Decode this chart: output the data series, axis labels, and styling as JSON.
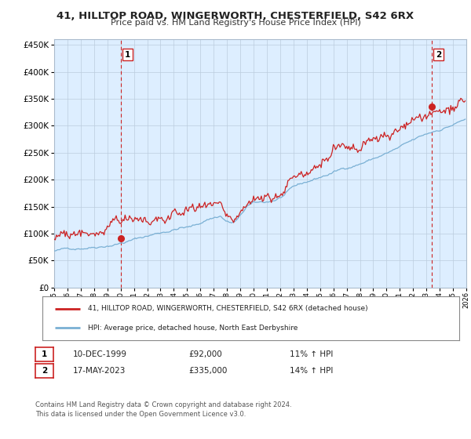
{
  "title": "41, HILLTOP ROAD, WINGERWORTH, CHESTERFIELD, S42 6RX",
  "subtitle": "Price paid vs. HM Land Registry's House Price Index (HPI)",
  "legend_line1": "41, HILLTOP ROAD, WINGERWORTH, CHESTERFIELD, S42 6RX (detached house)",
  "legend_line2": "HPI: Average price, detached house, North East Derbyshire",
  "sale1_label": "1",
  "sale1_date": "10-DEC-1999",
  "sale1_price": "£92,000",
  "sale1_hpi": "11% ↑ HPI",
  "sale1_year": 2000.0,
  "sale1_value": 92000,
  "sale2_label": "2",
  "sale2_date": "17-MAY-2023",
  "sale2_price": "£335,000",
  "sale2_hpi": "14% ↑ HPI",
  "sale2_year": 2023.38,
  "sale2_value": 335000,
  "hpi_color": "#7ab0d4",
  "price_color": "#cc2222",
  "dashed_color": "#cc2222",
  "background_color": "#ffffff",
  "chart_bg_color": "#ddeeff",
  "grid_color": "#bbccdd",
  "ylim": [
    0,
    460000
  ],
  "yticks": [
    0,
    50000,
    100000,
    150000,
    200000,
    250000,
    300000,
    350000,
    400000,
    450000
  ],
  "footnote1": "Contains HM Land Registry data © Crown copyright and database right 2024.",
  "footnote2": "This data is licensed under the Open Government Licence v3.0."
}
